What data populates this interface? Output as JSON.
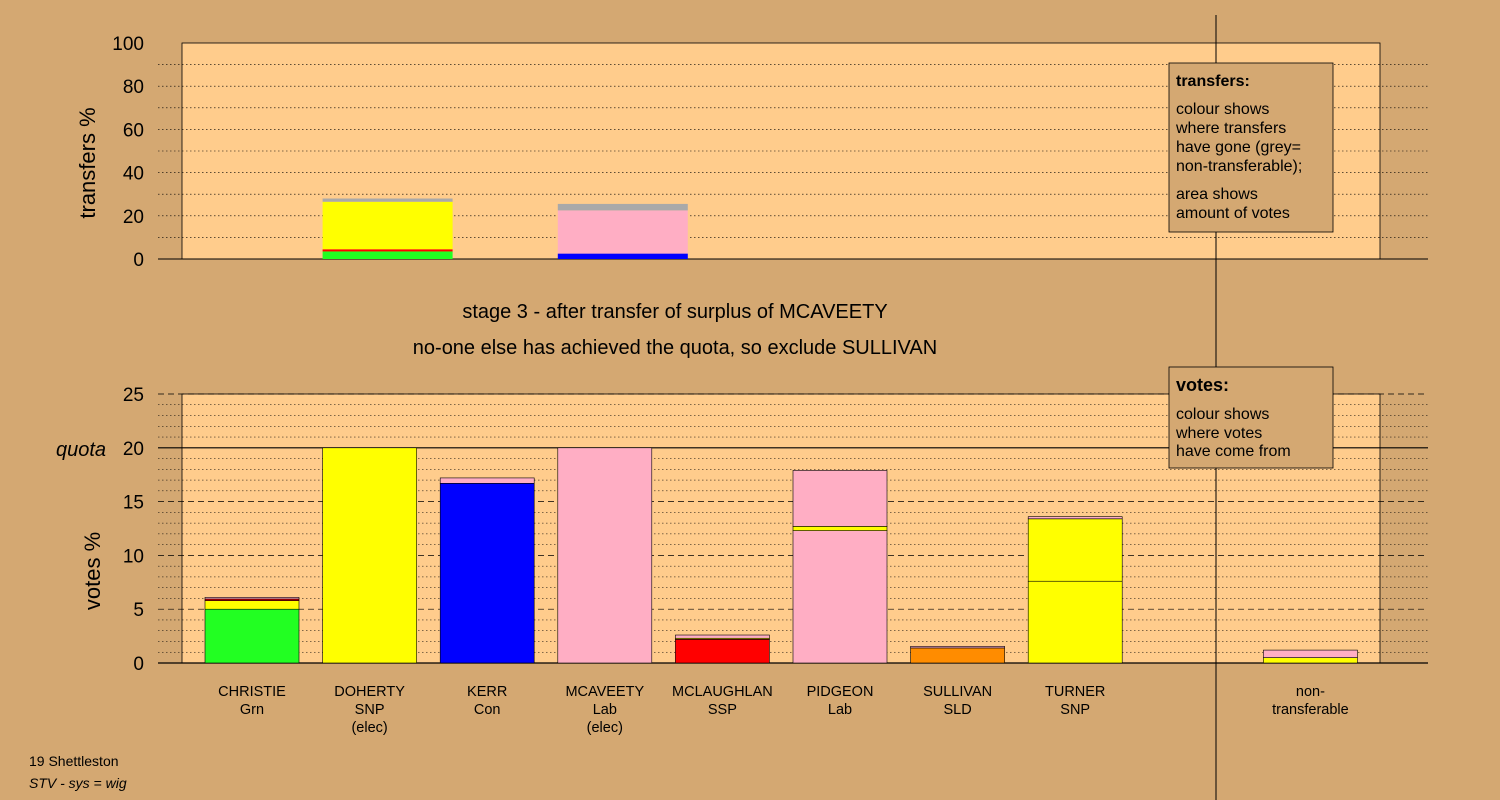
{
  "colors": {
    "background": "#d4a872",
    "plot_area": "#ffcc8c",
    "Grn": "#22ff22",
    "SNP": "#ffff00",
    "Con": "#0000ff",
    "Lab": "#ffaec4",
    "SSP": "#ff0000",
    "SLD": "#ff8c00",
    "nontransferable": "#a9a9a9"
  },
  "stage_title": "stage 3 - after transfer of surplus of MCAVEETY",
  "stage_note": "no-one else has achieved the quota, so exclude SULLIVAN",
  "footer": {
    "constituency": "19 Shettleston",
    "system": "STV - sys = wig"
  },
  "chart_data": [
    {
      "type": "bar",
      "stacked": true,
      "ylabel": "transfers %",
      "ylim": [
        0,
        100
      ],
      "yticks": [
        "0",
        "20",
        "40",
        "60",
        "80",
        "100"
      ],
      "grid": true,
      "legend": {
        "title": "transfers:",
        "lines1": [
          "colour shows",
          "where transfers",
          "have gone (grey=",
          "non-transferable);"
        ],
        "lines2": [
          "area shows",
          "amount of votes"
        ]
      },
      "bars": [
        {
          "position": 1.5,
          "segments": [
            {
              "party": "Grn",
              "value": 3.5
            },
            {
              "party": "SSP",
              "value": 1.0
            },
            {
              "party": "SNP",
              "value": 22.0
            },
            {
              "party": "nontransferable",
              "value": 1.5
            }
          ]
        },
        {
          "position": 3.5,
          "segments": [
            {
              "party": "Con",
              "value": 2.5
            },
            {
              "party": "Lab",
              "value": 20.0
            },
            {
              "party": "nontransferable",
              "value": 3.0
            }
          ]
        }
      ]
    },
    {
      "type": "bar",
      "stacked": true,
      "ylabel": "votes %",
      "ylim": [
        0,
        25
      ],
      "yticks": [
        "0",
        "5",
        "10",
        "15",
        "20",
        "25"
      ],
      "quota": {
        "label": "quota",
        "value": 20
      },
      "grid": true,
      "legend": {
        "title": "votes:",
        "lines1": [
          "colour shows",
          "where votes",
          "have come from"
        ]
      },
      "categories": [
        {
          "name": "CHRISTIE",
          "party": "Grn",
          "note": ""
        },
        {
          "name": "DOHERTY",
          "party": "SNP",
          "note": "(elec)"
        },
        {
          "name": "KERR",
          "party": "Con",
          "note": ""
        },
        {
          "name": "MCAVEETY",
          "party": "Lab",
          "note": "(elec)"
        },
        {
          "name": "MCLAUGHLAN",
          "party": "SSP",
          "note": ""
        },
        {
          "name": "PIDGEON",
          "party": "Lab",
          "note": ""
        },
        {
          "name": "SULLIVAN",
          "party": "SLD",
          "note": ""
        },
        {
          "name": "TURNER",
          "party": "SNP",
          "note": ""
        },
        {
          "name": "",
          "party": "",
          "note": ""
        },
        {
          "name": "non-",
          "party": "transferable",
          "note": ""
        }
      ],
      "bars": [
        [
          {
            "party": "Grn",
            "value": 5.0
          },
          {
            "party": "SNP",
            "value": 0.8
          },
          {
            "party": "SSP",
            "value": 0.15
          },
          {
            "party": "Lab",
            "value": 0.15
          }
        ],
        [
          {
            "party": "SNP",
            "value": 20.0
          }
        ],
        [
          {
            "party": "Con",
            "value": 16.7
          },
          {
            "party": "Lab",
            "value": 0.5
          }
        ],
        [
          {
            "party": "Lab",
            "value": 20.0
          }
        ],
        [
          {
            "party": "SSP",
            "value": 2.2
          },
          {
            "party": "SNP",
            "value": 0.1
          },
          {
            "party": "Lab",
            "value": 0.3
          }
        ],
        [
          {
            "party": "Lab",
            "value": 12.3
          },
          {
            "party": "SNP",
            "value": 0.4
          },
          {
            "party": "Lab",
            "value": 5.2
          }
        ],
        [
          {
            "party": "SLD",
            "value": 1.4
          },
          {
            "party": "Lab",
            "value": 0.15
          }
        ],
        [
          {
            "party": "SNP",
            "value": 7.6
          },
          {
            "party": "SNP",
            "value": 5.8
          },
          {
            "party": "Lab",
            "value": 0.2
          }
        ],
        [],
        [
          {
            "party": "SNP",
            "value": 0.5
          },
          {
            "party": "Lab",
            "value": 0.7
          }
        ]
      ]
    }
  ]
}
